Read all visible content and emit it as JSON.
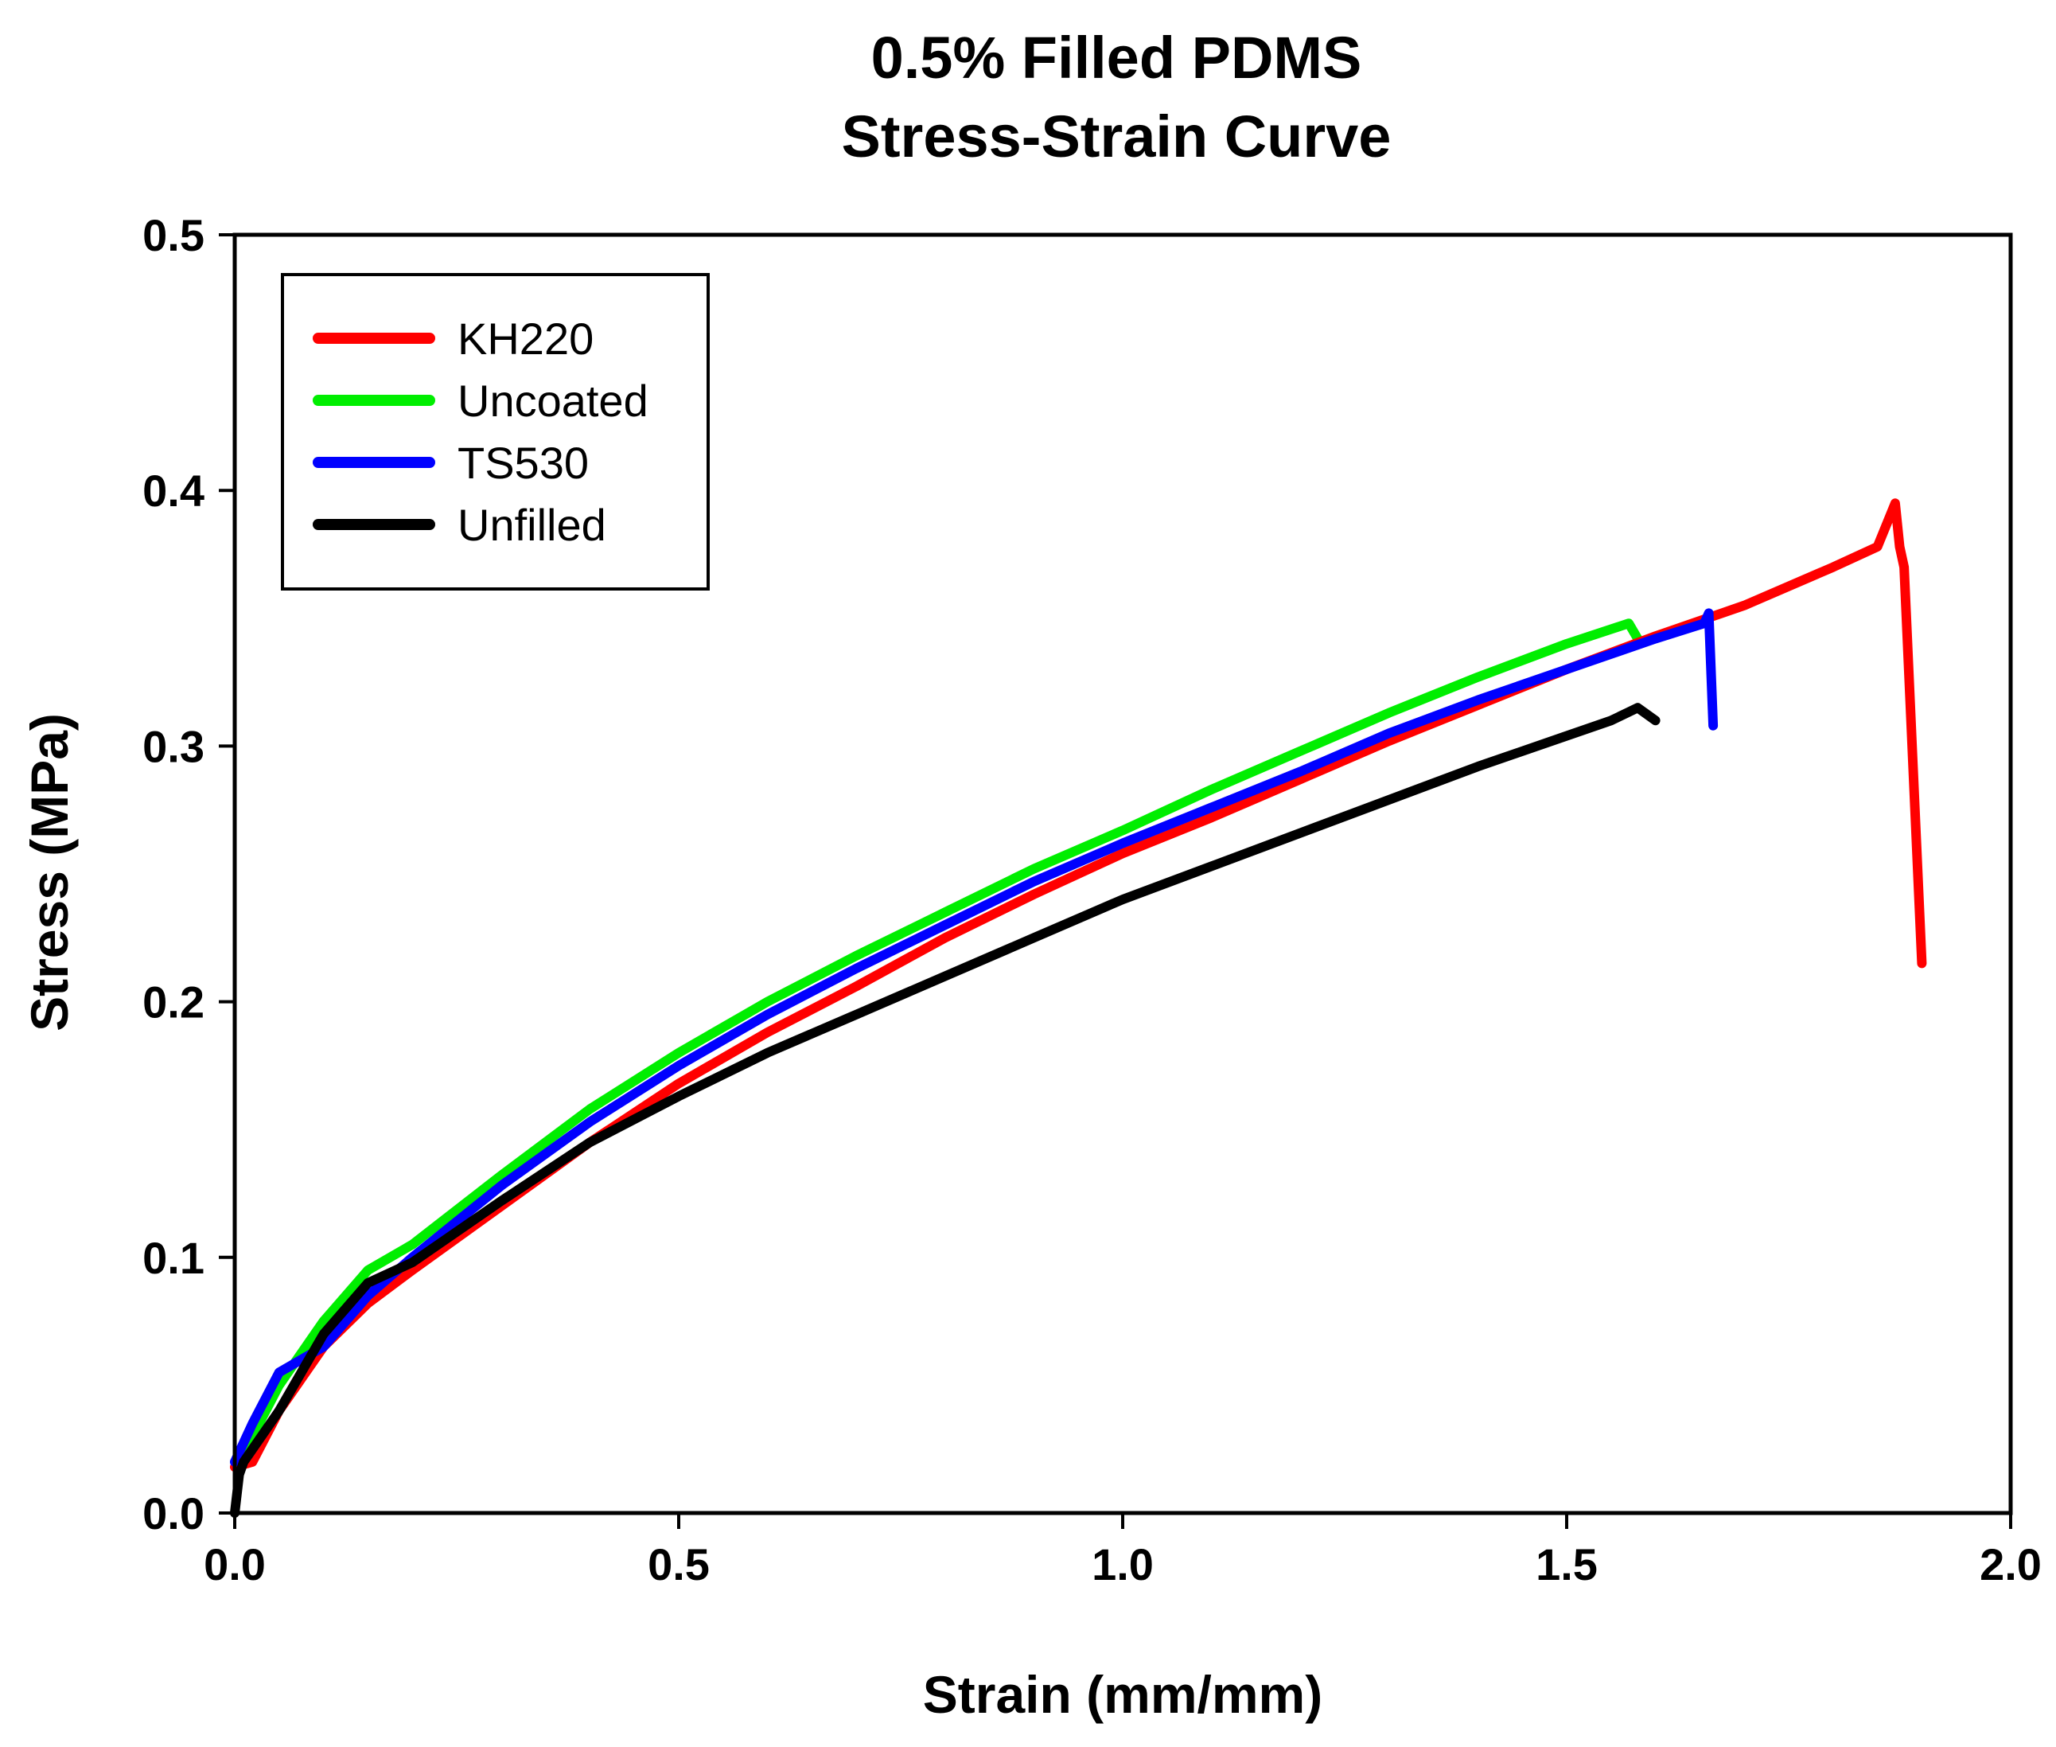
{
  "chart_data": {
    "type": "line",
    "title": [
      "0.5% Filled PDMS",
      "Stress-Strain Curve"
    ],
    "xlabel": "Strain (mm/mm)",
    "ylabel": "Stress (MPa)",
    "xlim": [
      0,
      2.0
    ],
    "ylim": [
      0,
      0.5
    ],
    "xticks": [
      0.0,
      0.5,
      1.0,
      1.5,
      2.0
    ],
    "xtick_labels": [
      "0.0",
      "0.5",
      "1.0",
      "1.5",
      "2.0"
    ],
    "yticks": [
      0.0,
      0.1,
      0.2,
      0.3,
      0.4,
      0.5
    ],
    "ytick_labels": [
      "0.0",
      "0.1",
      "0.2",
      "0.3",
      "0.4",
      "0.5"
    ],
    "grid": false,
    "legend_position": "top-left",
    "series": [
      {
        "name": "KH220",
        "color": "#ff0000",
        "x": [
          0.0,
          0.02,
          0.05,
          0.1,
          0.15,
          0.2,
          0.3,
          0.4,
          0.5,
          0.6,
          0.7,
          0.8,
          0.9,
          1.0,
          1.1,
          1.2,
          1.3,
          1.4,
          1.5,
          1.6,
          1.7,
          1.8,
          1.85,
          1.87,
          1.875,
          1.88,
          1.9
        ],
        "y": [
          0.018,
          0.02,
          0.04,
          0.065,
          0.082,
          0.095,
          0.12,
          0.145,
          0.168,
          0.188,
          0.206,
          0.225,
          0.242,
          0.258,
          0.272,
          0.287,
          0.302,
          0.316,
          0.33,
          0.343,
          0.355,
          0.37,
          0.378,
          0.395,
          0.378,
          0.37,
          0.215
        ]
      },
      {
        "name": "Uncoated",
        "color": "#00ee00",
        "x": [
          0.0,
          0.02,
          0.05,
          0.1,
          0.15,
          0.2,
          0.3,
          0.4,
          0.5,
          0.6,
          0.7,
          0.8,
          0.9,
          1.0,
          1.1,
          1.2,
          1.3,
          1.4,
          1.5,
          1.57,
          1.58
        ],
        "y": [
          0.02,
          0.03,
          0.05,
          0.075,
          0.095,
          0.105,
          0.132,
          0.158,
          0.18,
          0.2,
          0.218,
          0.235,
          0.252,
          0.267,
          0.283,
          0.298,
          0.313,
          0.327,
          0.34,
          0.348,
          0.342
        ]
      },
      {
        "name": "TS530",
        "color": "#0000ff",
        "x": [
          0.0,
          0.02,
          0.05,
          0.1,
          0.15,
          0.2,
          0.3,
          0.4,
          0.5,
          0.6,
          0.7,
          0.8,
          0.9,
          1.0,
          1.1,
          1.2,
          1.3,
          1.4,
          1.5,
          1.6,
          1.655,
          1.66,
          1.665
        ],
        "y": [
          0.02,
          0.035,
          0.055,
          0.065,
          0.085,
          0.1,
          0.128,
          0.153,
          0.175,
          0.195,
          0.213,
          0.23,
          0.247,
          0.262,
          0.276,
          0.29,
          0.305,
          0.318,
          0.33,
          0.342,
          0.348,
          0.352,
          0.308
        ]
      },
      {
        "name": "Unfilled",
        "color": "#000000",
        "x": [
          0.0,
          0.005,
          0.01,
          0.05,
          0.1,
          0.15,
          0.2,
          0.3,
          0.4,
          0.5,
          0.6,
          0.7,
          0.8,
          0.9,
          1.0,
          1.1,
          1.2,
          1.3,
          1.4,
          1.5,
          1.55,
          1.58,
          1.6
        ],
        "y": [
          0.0,
          0.015,
          0.02,
          0.04,
          0.07,
          0.09,
          0.098,
          0.122,
          0.145,
          0.163,
          0.18,
          0.195,
          0.21,
          0.225,
          0.24,
          0.253,
          0.266,
          0.279,
          0.292,
          0.304,
          0.31,
          0.315,
          0.31
        ]
      }
    ]
  }
}
